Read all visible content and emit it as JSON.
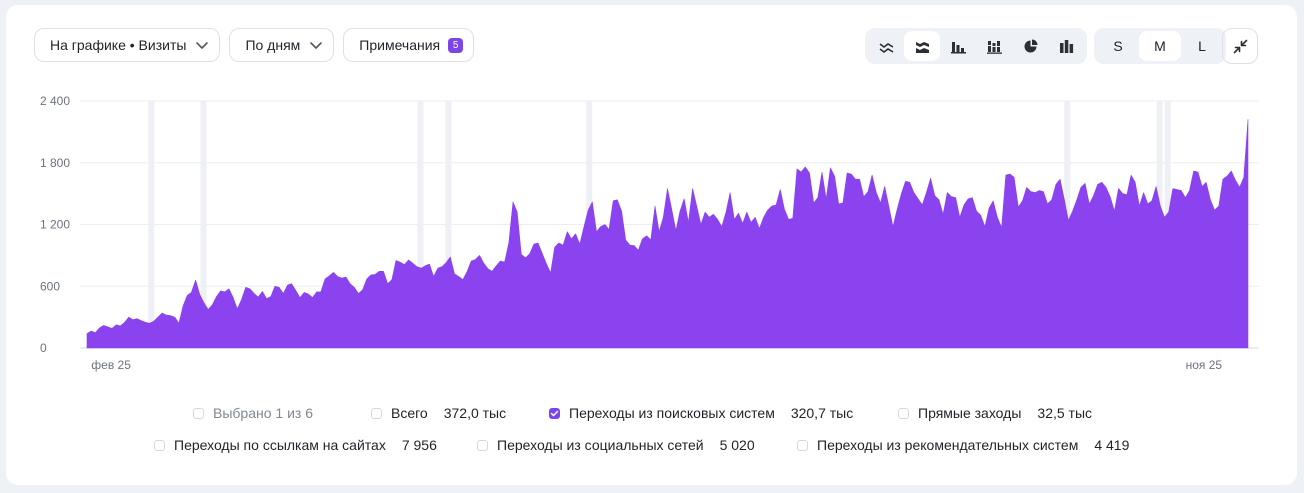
{
  "toolbar": {
    "metric_select": "На графике • Визиты",
    "period_select": "По дням",
    "notes_label": "Примечания",
    "notes_count": "5"
  },
  "chart_type_buttons": [
    {
      "icon": "line-chart-icon",
      "active": false
    },
    {
      "icon": "stacked-area-chart-icon",
      "active": true
    },
    {
      "icon": "bar-chart-icon",
      "active": false
    },
    {
      "icon": "stacked-bar-chart-icon",
      "active": false
    },
    {
      "icon": "pie-chart-icon",
      "active": false
    },
    {
      "icon": "column-chart-icon",
      "active": false
    }
  ],
  "size_buttons": [
    {
      "label": "S",
      "active": false
    },
    {
      "label": "M",
      "active": true
    },
    {
      "label": "L",
      "active": false
    }
  ],
  "collapse_icon": "collapse-icon",
  "chart_data": {
    "type": "area",
    "title": "",
    "xlabel": "",
    "ylabel": "",
    "ylim": [
      0,
      2400
    ],
    "yticks": [
      "0",
      "600",
      "1 200",
      "1 800",
      "2 400"
    ],
    "x_tick_labels": [
      {
        "label": "фев 25",
        "day": 7
      },
      {
        "label": "ноя 25",
        "day": 279
      }
    ],
    "x_domain_days": [
      1,
      290
    ],
    "grid": true,
    "color": "#8a43ee",
    "annotation_days": [
      17,
      30,
      84,
      91,
      126,
      245,
      268,
      270
    ],
    "series": [
      {
        "values": [
          140,
          165,
          150,
          195,
          220,
          205,
          190,
          225,
          215,
          250,
          300,
          275,
          285,
          265,
          250,
          240,
          260,
          300,
          340,
          320,
          315,
          300,
          240,
          410,
          510,
          540,
          660,
          520,
          440,
          375,
          420,
          500,
          555,
          545,
          575,
          490,
          380,
          470,
          590,
          575,
          530,
          495,
          550,
          480,
          500,
          600,
          590,
          530,
          610,
          625,
          560,
          490,
          540,
          525,
          490,
          545,
          545,
          670,
          700,
          735,
          695,
          680,
          690,
          625,
          590,
          530,
          565,
          670,
          710,
          715,
          745,
          745,
          625,
          665,
          850,
          835,
          810,
          855,
          825,
          790,
          775,
          800,
          815,
          695,
          775,
          790,
          830,
          885,
          720,
          695,
          665,
          740,
          845,
          860,
          900,
          825,
          770,
          745,
          800,
          845,
          835,
          1020,
          1420,
          1320,
          910,
          875,
          915,
          1010,
          1020,
          920,
          820,
          730,
          980,
          1020,
          1000,
          1130,
          1060,
          1110,
          1010,
          1180,
          1340,
          1420,
          1130,
          1180,
          1200,
          1150,
          1430,
          1440,
          1330,
          1050,
          1000,
          995,
          950,
          1060,
          1090,
          1050,
          1380,
          1130,
          1270,
          1550,
          1350,
          1140,
          1330,
          1450,
          1220,
          1550,
          1380,
          1200,
          1320,
          1270,
          1300,
          1250,
          1180,
          1320,
          1510,
          1250,
          1310,
          1210,
          1320,
          1220,
          1270,
          1160,
          1270,
          1340,
          1380,
          1390,
          1540,
          1350,
          1250,
          1260,
          1740,
          1710,
          1760,
          1700,
          1410,
          1460,
          1710,
          1450,
          1750,
          1670,
          1400,
          1410,
          1700,
          1690,
          1640,
          1640,
          1470,
          1520,
          1680,
          1510,
          1410,
          1570,
          1380,
          1180,
          1350,
          1500,
          1620,
          1610,
          1510,
          1450,
          1390,
          1510,
          1650,
          1480,
          1440,
          1300,
          1510,
          1470,
          1460,
          1270,
          1390,
          1450,
          1460,
          1330,
          1290,
          1180,
          1360,
          1430,
          1270,
          1170,
          1680,
          1690,
          1660,
          1370,
          1430,
          1560,
          1520,
          1510,
          1530,
          1520,
          1400,
          1440,
          1590,
          1640,
          1450,
          1240,
          1330,
          1440,
          1560,
          1600,
          1400,
          1480,
          1590,
          1610,
          1560,
          1470,
          1330,
          1550,
          1500,
          1490,
          1680,
          1610,
          1380,
          1510,
          1400,
          1430,
          1570,
          1380,
          1270,
          1320,
          1550,
          1540,
          1530,
          1460,
          1530,
          1720,
          1710,
          1570,
          1610,
          1440,
          1340,
          1380,
          1640,
          1670,
          1720,
          1630,
          1560,
          1660,
          2220
        ]
      }
    ]
  },
  "legend": {
    "selected_label": "Выбрано 1 из 6",
    "items": [
      {
        "label": "Всего",
        "value": "372,0 тыс",
        "checked": false
      },
      {
        "label": "Переходы из поисковых систем",
        "value": "320,7 тыс",
        "checked": true
      },
      {
        "label": "Прямые заходы",
        "value": "32,5 тыс",
        "checked": false
      },
      {
        "label": "Переходы по ссылкам на сайтах",
        "value": "7 956",
        "checked": false
      },
      {
        "label": "Переходы из социальных сетей",
        "value": "5 020",
        "checked": false
      },
      {
        "label": "Переходы из рекомендательных систем",
        "value": "4 419",
        "checked": false
      }
    ]
  }
}
